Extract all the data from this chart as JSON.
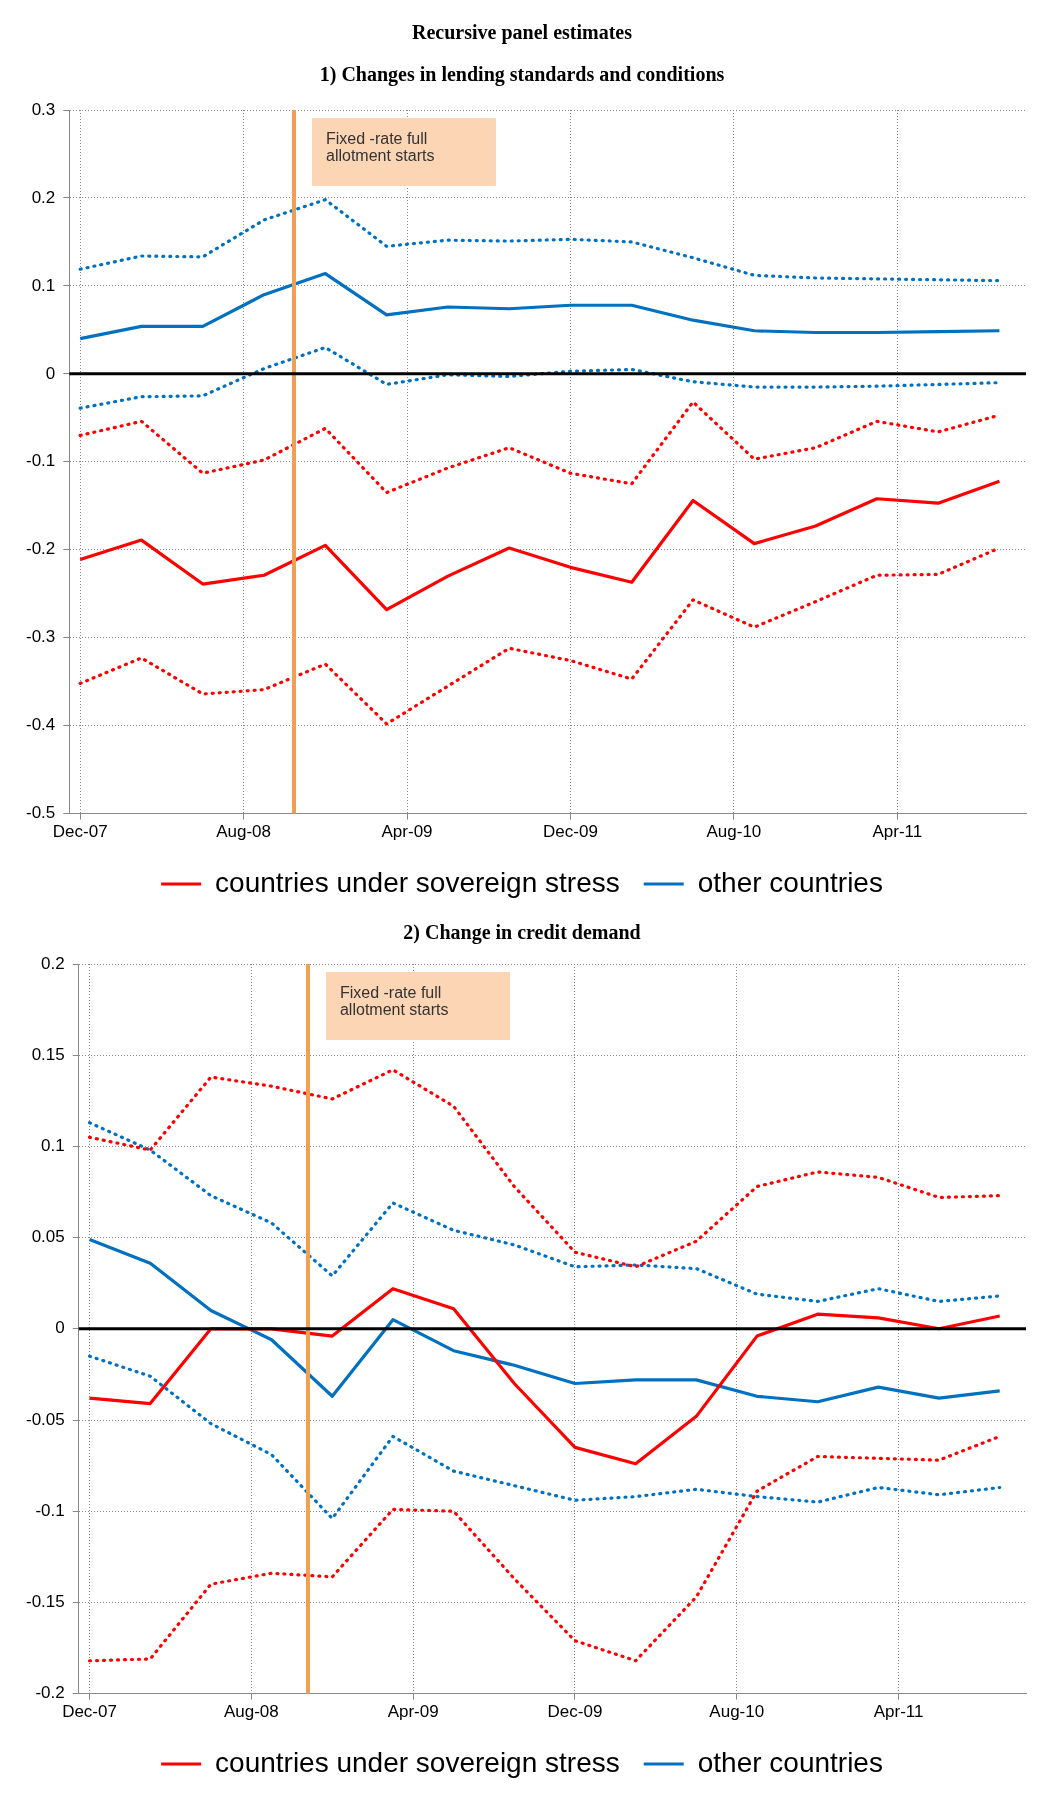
{
  "chart_data": [
    {
      "type": "line",
      "title": "Recursive panel estimates",
      "subtitle": "1) Changes in lending standards and conditions",
      "x": [
        "2007-12",
        "2008-03",
        "2008-06",
        "2008-09",
        "2008-12",
        "2009-03",
        "2009-06",
        "2009-09",
        "2009-12",
        "2010-03",
        "2010-06",
        "2010-09",
        "2010-12",
        "2011-03",
        "2011-06",
        "2011-09"
      ],
      "xlim": [
        "2007-11-15",
        "2011-10-10"
      ],
      "xticks": [
        {
          "value": "2007-12",
          "label": "Dec-07"
        },
        {
          "value": "2008-08",
          "label": "Aug-08"
        },
        {
          "value": "2009-04",
          "label": "Apr-09"
        },
        {
          "value": "2009-12",
          "label": "Dec-09"
        },
        {
          "value": "2010-08",
          "label": "Aug-10"
        },
        {
          "value": "2011-04",
          "label": "Apr-11"
        }
      ],
      "ylim": [
        -0.5,
        0.3
      ],
      "yticks": [
        -0.5,
        -0.4,
        -0.3,
        -0.2,
        -0.1,
        0,
        0.1,
        0.2,
        0.3
      ],
      "grid": true,
      "legend": "bottom",
      "ref_lines": [
        {
          "axis": "x",
          "value": "2008-10-15",
          "label": "Fixed -rate full allotment starts",
          "color": "#f0a050"
        },
        {
          "axis": "y",
          "value": 0,
          "color": "#000000"
        }
      ],
      "series": [
        {
          "name": "countries under sovereign stress",
          "color": "#ff0000",
          "line_style": "solid",
          "values": [
            -0.211,
            -0.189,
            -0.239,
            -0.229,
            -0.195,
            -0.268,
            -0.23,
            -0.198,
            -0.22,
            -0.237,
            -0.144,
            -0.193,
            -0.173,
            -0.142,
            -0.147,
            -0.122
          ]
        },
        {
          "color": "#ff0000",
          "line_style": "dotted",
          "values": [
            -0.07,
            -0.054,
            -0.113,
            -0.098,
            -0.062,
            -0.135,
            -0.107,
            -0.084,
            -0.113,
            -0.125,
            -0.032,
            -0.097,
            -0.084,
            -0.054,
            -0.066,
            -0.047
          ]
        },
        {
          "color": "#ff0000",
          "line_style": "dotted",
          "values": [
            -0.352,
            -0.323,
            -0.364,
            -0.359,
            -0.33,
            -0.398,
            -0.355,
            -0.312,
            -0.326,
            -0.347,
            -0.257,
            -0.288,
            -0.259,
            -0.229,
            -0.228,
            -0.198
          ]
        },
        {
          "name": "other countries",
          "color": "#0070c0",
          "line_style": "solid",
          "values": [
            0.04,
            0.054,
            0.054,
            0.09,
            0.114,
            0.067,
            0.076,
            0.074,
            0.078,
            0.078,
            0.061,
            0.049,
            0.047,
            0.047,
            0.048,
            0.049
          ]
        },
        {
          "color": "#0070c0",
          "line_style": "dotted",
          "values": [
            0.119,
            0.134,
            0.133,
            0.175,
            0.198,
            0.145,
            0.152,
            0.151,
            0.153,
            0.15,
            0.132,
            0.112,
            0.109,
            0.108,
            0.107,
            0.106
          ]
        },
        {
          "color": "#0070c0",
          "line_style": "dotted",
          "values": [
            -0.039,
            -0.026,
            -0.025,
            0.006,
            0.03,
            -0.012,
            -0.001,
            -0.003,
            0.003,
            0.005,
            -0.009,
            -0.015,
            -0.015,
            -0.014,
            -0.012,
            -0.01
          ]
        }
      ]
    },
    {
      "type": "line",
      "title": "2) Change in credit demand",
      "x": [
        "2007-12",
        "2008-03",
        "2008-06",
        "2008-09",
        "2008-12",
        "2009-03",
        "2009-06",
        "2009-09",
        "2009-12",
        "2010-03",
        "2010-06",
        "2010-09",
        "2010-12",
        "2011-03",
        "2011-06",
        "2011-09"
      ],
      "xlim": [
        "2007-11-15",
        "2011-10-10"
      ],
      "xticks": [
        {
          "value": "2007-12",
          "label": "Dec-07"
        },
        {
          "value": "2008-08",
          "label": "Aug-08"
        },
        {
          "value": "2009-04",
          "label": "Apr-09"
        },
        {
          "value": "2009-12",
          "label": "Dec-09"
        },
        {
          "value": "2010-08",
          "label": "Aug-10"
        },
        {
          "value": "2011-04",
          "label": "Apr-11"
        }
      ],
      "ylim": [
        -0.2,
        0.2
      ],
      "yticks": [
        -0.2,
        -0.15,
        -0.1,
        -0.05,
        0,
        0.05,
        0.1,
        0.15,
        0.2
      ],
      "grid": true,
      "legend": "bottom",
      "ref_lines": [
        {
          "axis": "x",
          "value": "2008-10-25",
          "label": "Fixed -rate full allotment starts",
          "color": "#f0a050"
        },
        {
          "axis": "y",
          "value": 0,
          "color": "#000000"
        }
      ],
      "series": [
        {
          "name": "countries under sovereign stress",
          "color": "#ff0000",
          "line_style": "solid",
          "values": [
            -0.038,
            -0.041,
            0,
            0,
            -0.004,
            0.022,
            0.011,
            -0.03,
            -0.065,
            -0.074,
            -0.048,
            -0.004,
            0.008,
            0.006,
            0,
            0.007
          ]
        },
        {
          "color": "#ff0000",
          "line_style": "dotted",
          "values": [
            0.105,
            0.098,
            0.138,
            0.133,
            0.126,
            0.142,
            0.122,
            0.078,
            0.042,
            0.034,
            0.048,
            0.078,
            0.086,
            0.083,
            0.072,
            0.073
          ]
        },
        {
          "color": "#ff0000",
          "line_style": "dotted",
          "values": [
            -0.182,
            -0.181,
            -0.14,
            -0.134,
            -0.136,
            -0.099,
            -0.1,
            -0.137,
            -0.171,
            -0.182,
            -0.147,
            -0.089,
            -0.07,
            -0.071,
            -0.072,
            -0.059
          ]
        },
        {
          "name": "other countries",
          "color": "#0070c0",
          "line_style": "solid",
          "values": [
            0.049,
            0.036,
            0.01,
            -0.006,
            -0.037,
            0.005,
            -0.012,
            -0.02,
            -0.03,
            -0.028,
            -0.028,
            -0.037,
            -0.04,
            -0.032,
            -0.038,
            -0.034
          ]
        },
        {
          "color": "#0070c0",
          "line_style": "dotted",
          "values": [
            0.113,
            0.098,
            0.073,
            0.058,
            0.029,
            0.069,
            0.054,
            0.046,
            0.034,
            0.035,
            0.033,
            0.019,
            0.015,
            0.022,
            0.015,
            0.018
          ]
        },
        {
          "color": "#0070c0",
          "line_style": "dotted",
          "values": [
            -0.015,
            -0.026,
            -0.052,
            -0.069,
            -0.104,
            -0.059,
            -0.078,
            -0.086,
            -0.094,
            -0.092,
            -0.088,
            -0.092,
            -0.095,
            -0.087,
            -0.091,
            -0.087
          ]
        }
      ]
    }
  ]
}
